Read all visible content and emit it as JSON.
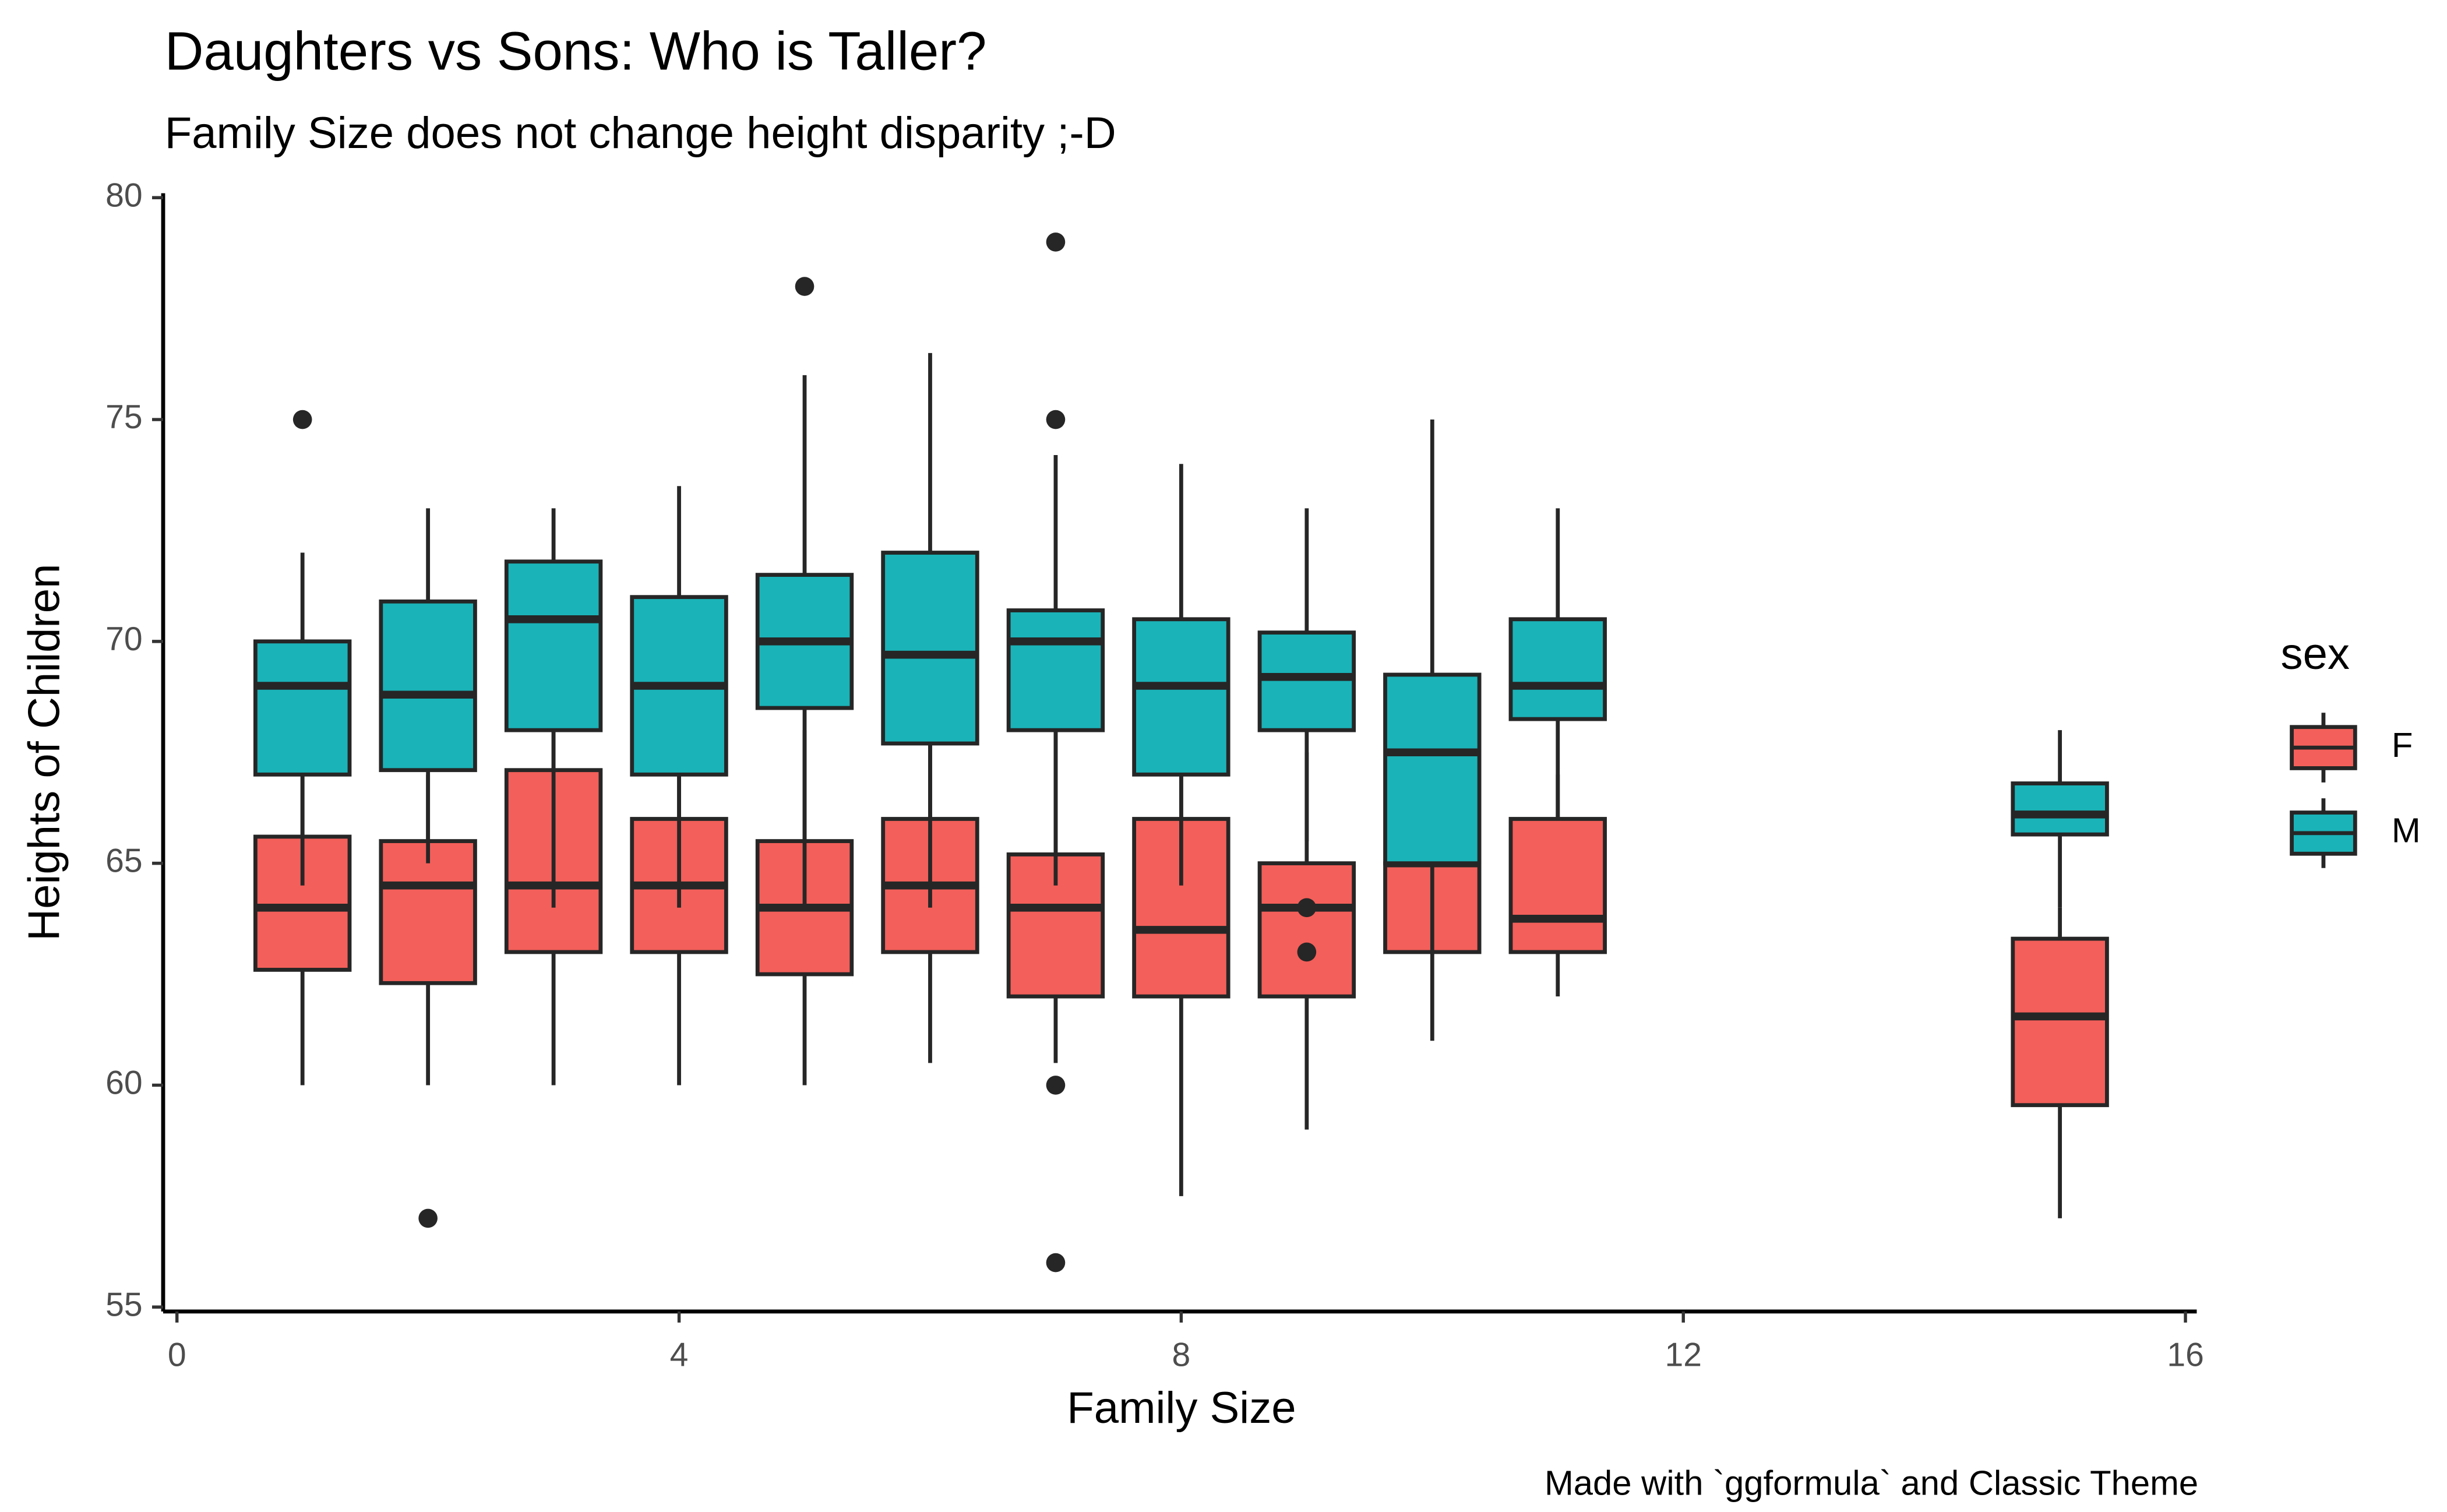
{
  "chart_data": {
    "type": "boxplot",
    "title": "Daughters vs Sons: Who is Taller?",
    "subtitle": "Family Size does not change height disparity ;-D",
    "x_label": "Family Size",
    "y_label": "Heights of Children",
    "caption": "Made with `ggformula` and Classic Theme",
    "legend_title": "sex",
    "legend_position": "right",
    "x": [
      1,
      2,
      3,
      4,
      5,
      6,
      7,
      8,
      9,
      10,
      11,
      15
    ],
    "xlim": [
      -0.11,
      16.09
    ],
    "ylim": [
      54.9,
      80.1
    ],
    "xticks": [
      0,
      4,
      8,
      12,
      16
    ],
    "yticks": [
      55,
      60,
      65,
      70,
      75,
      80
    ],
    "series": [
      {
        "name": "F",
        "color": "#f35f5a",
        "whislo": [
          60,
          60,
          60,
          60,
          60,
          60.5,
          60.5,
          57.5,
          59,
          61,
          62,
          57
        ],
        "q1": [
          62.6,
          62.3,
          63,
          63,
          62.5,
          63,
          62,
          62,
          62,
          63,
          63,
          59.55
        ],
        "med": [
          64,
          64.5,
          64.5,
          64.5,
          64,
          64.5,
          64,
          63.5,
          64,
          65,
          63.75,
          61.55
        ],
        "q3": [
          65.6,
          65.5,
          67.1,
          66,
          65.5,
          66,
          65.2,
          66,
          65,
          65,
          66,
          63.3
        ],
        "whishi": [
          67,
          67,
          70,
          68,
          68,
          68,
          68,
          68,
          67.5,
          67,
          67,
          64
        ],
        "fliers": [
          [],
          [
            57
          ],
          [],
          [],
          [],
          [],
          [
            60,
            56
          ],
          [],
          [
            64,
            63
          ],
          [],
          [],
          []
        ]
      },
      {
        "name": "M",
        "color": "#1ab3b8",
        "whislo": [
          64.5,
          65,
          64,
          64,
          64,
          64,
          64.5,
          64.5,
          65.5,
          63,
          66,
          64
        ],
        "q1": [
          67,
          67.1,
          68,
          67,
          68.5,
          67.7,
          68,
          67,
          68,
          65,
          68.25,
          65.65
        ],
        "med": [
          69,
          68.8,
          70.5,
          69,
          70,
          69.7,
          70,
          69,
          69.2,
          67.5,
          69,
          66.1
        ],
        "q3": [
          70,
          70.9,
          71.8,
          71,
          71.5,
          72,
          70.7,
          70.5,
          70.2,
          69.25,
          70.5,
          66.8
        ],
        "whishi": [
          72,
          73,
          73,
          73.5,
          76,
          76.5,
          74.2,
          74,
          73,
          75,
          73,
          68
        ],
        "fliers": [
          [
            75
          ],
          [],
          [],
          [],
          [
            78
          ],
          [],
          [
            75,
            79
          ],
          [],
          [],
          [],
          [],
          []
        ]
      }
    ]
  }
}
